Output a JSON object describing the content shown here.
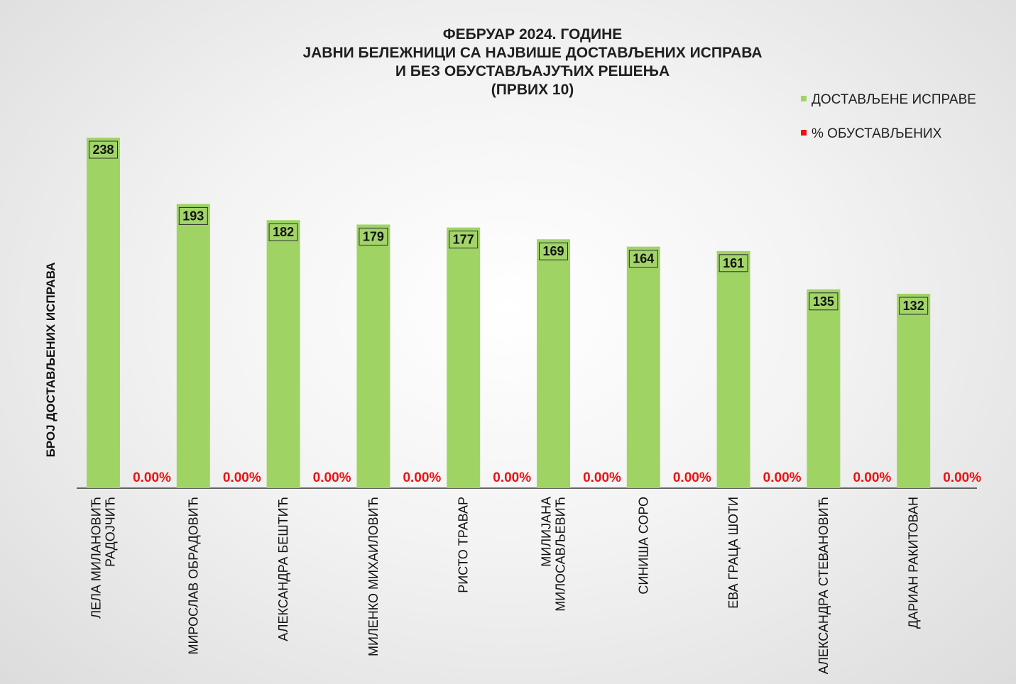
{
  "chart_data": {
    "type": "bar",
    "title": [
      "ФЕБРУАР 2024. ГОДИНЕ",
      "ЈАВНИ БЕЛЕЖНИЦИ СА НАЈВИШЕ ДОСТАВЉЕНИХ ИСПРАВА",
      "И БЕЗ ОБУСТАВЉАЈУЋИХ РЕШЕЊА",
      "(ПРВИХ 10)"
    ],
    "ylabel": "БРОЈ ДОСТАВЉЕНИХ ИСПРАВА",
    "xlabel": "",
    "ylim": [
      0,
      240
    ],
    "grid": false,
    "legend_position": "top-right",
    "categories": [
      [
        "ЛЕЛА МИЛАНОВИЋ",
        "РАДОЈЧИЋ"
      ],
      [
        "МИРОСЛАВ ОБРАДОВИЋ"
      ],
      [
        "АЛЕКСАНДРА БЕШТИЋ"
      ],
      [
        "МИЛЕНКО МИХАИЛОВИЋ"
      ],
      [
        "РИСТО ТРАВАР"
      ],
      [
        "МИЛИЈАНА",
        "МИЛОСАВЉЕВИЋ"
      ],
      [
        "СИНИША СОРО"
      ],
      [
        "ЕВА ГРАЦА ШОТИ"
      ],
      [
        "АЛЕКСАНДРА СТЕВАНОВИЋ"
      ],
      [
        "ДАРИАН РАКИТОВАН"
      ]
    ],
    "series": [
      {
        "name": "ДОСТАВЉЕНЕ ИСПРАВЕ",
        "color": "#9fd465",
        "values": [
          238,
          193,
          182,
          179,
          177,
          169,
          164,
          161,
          135,
          132
        ],
        "labels": [
          "238",
          "193",
          "182",
          "179",
          "177",
          "169",
          "164",
          "161",
          "135",
          "132"
        ]
      },
      {
        "name": "% ОБУСТАВЉЕНИХ",
        "color": "#ee1111",
        "values": [
          0,
          0,
          0,
          0,
          0,
          0,
          0,
          0,
          0,
          0
        ],
        "labels": [
          "0.00%",
          "0.00%",
          "0.00%",
          "0.00%",
          "0.00%",
          "0.00%",
          "0.00%",
          "0.00%",
          "0.00%",
          "0.00%"
        ]
      }
    ]
  }
}
